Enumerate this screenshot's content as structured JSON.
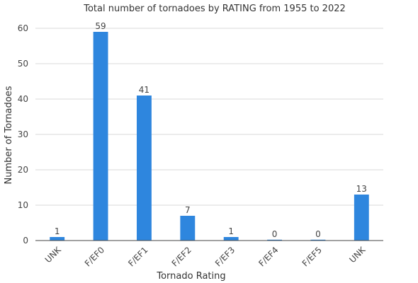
{
  "chart_data": {
    "type": "bar",
    "title": "Total number of tornadoes by RATING from 1955 to 2022",
    "xlabel": "Tornado Rating",
    "ylabel": "Number of Tornadoes",
    "categories": [
      "UNK",
      "F/EF0",
      "F/EF1",
      "F/EF2",
      "F/EF3",
      "F/EF4",
      "F/EF5",
      "UNK"
    ],
    "values": [
      1,
      59,
      41,
      7,
      1,
      0,
      0,
      13
    ],
    "ylim": [
      0,
      60
    ],
    "yticks": [
      0,
      10,
      20,
      30,
      40,
      50,
      60
    ],
    "grid": true,
    "legend": "none",
    "bar_color": "#2e86de",
    "data_labels": [
      "1",
      "59",
      "41",
      "7",
      "1",
      "0",
      "0",
      "13"
    ]
  }
}
